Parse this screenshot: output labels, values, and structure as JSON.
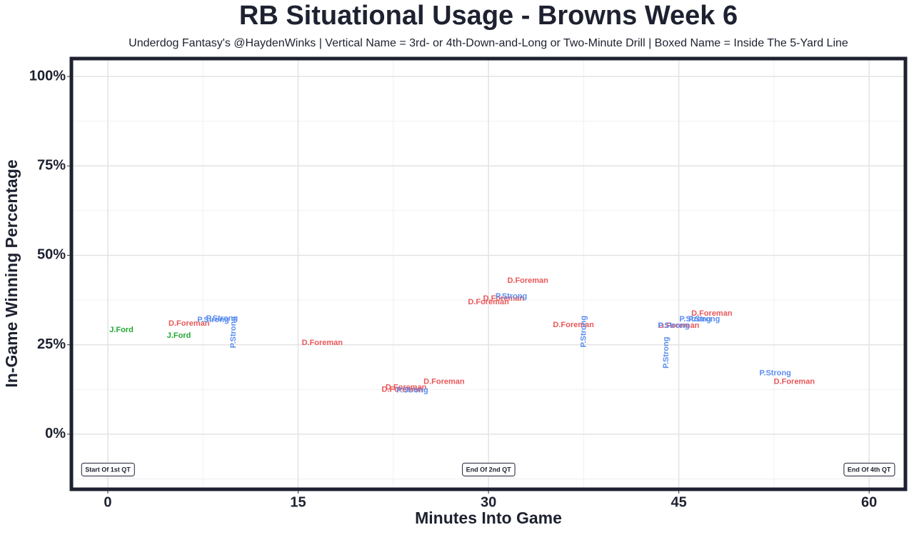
{
  "chart_data": {
    "type": "scatter",
    "title": "RB Situational Usage - Browns Week 6",
    "subtitle": "Underdog Fantasy's @HaydenWinks | Vertical Name = 3rd- or 4th-Down-and-Long or Two-Minute Drill | Boxed Name = Inside The 5-Yard Line",
    "x_label": "Minutes Into Game",
    "y_label": "In-Game Winning Percentage",
    "xlim": [
      -2.87,
      62.86
    ],
    "ylim": [
      -15.4,
      105
    ],
    "xticks": [
      0,
      15,
      30,
      45,
      60
    ],
    "yticks": [
      {
        "value": 0,
        "label": "0%"
      },
      {
        "value": 25,
        "label": "25%"
      },
      {
        "value": 50,
        "label": "50%"
      },
      {
        "value": 75,
        "label": "75%"
      },
      {
        "value": 100,
        "label": "100%"
      }
    ],
    "grid": true,
    "series": [
      {
        "name": "D.Foreman",
        "color": "#e8585a",
        "x": [
          6.4,
          16.9,
          23.2,
          23.5,
          26.5,
          30.0,
          31.2,
          33.1,
          36.7,
          45.0,
          47.6,
          54.1
        ],
        "values": [
          30.9,
          25.5,
          12.4,
          13.0,
          14.6,
          36.9,
          37.9,
          42.9,
          30.5,
          30.3,
          33.7,
          14.6
        ],
        "vertical": [
          false,
          false,
          false,
          false,
          false,
          false,
          false,
          false,
          false,
          false,
          false,
          false
        ]
      },
      {
        "name": "P.Strong",
        "color": "#5b8ef0",
        "x": [
          8.3,
          9.0,
          9.9,
          24.0,
          31.8,
          37.5,
          44.0,
          44.6,
          46.3,
          47.0,
          52.6
        ],
        "values": [
          31.9,
          32.3,
          28.5,
          12.2,
          38.5,
          28.7,
          22.8,
          30.3,
          32.1,
          32.1,
          17.0
        ],
        "vertical": [
          false,
          false,
          true,
          false,
          false,
          true,
          true,
          false,
          false,
          false,
          false
        ]
      },
      {
        "name": "J.Ford",
        "color": "#22aa33",
        "x": [
          1.07,
          5.6
        ],
        "values": [
          29.1,
          27.5
        ],
        "vertical": [
          false,
          false
        ]
      }
    ],
    "annotations": [
      {
        "text": "Start Of 1st QT",
        "x": 0,
        "y": -10
      },
      {
        "text": "End Of 2nd QT",
        "x": 30,
        "y": -10
      },
      {
        "text": "End Of 4th QT",
        "x": 60,
        "y": -10
      }
    ]
  }
}
